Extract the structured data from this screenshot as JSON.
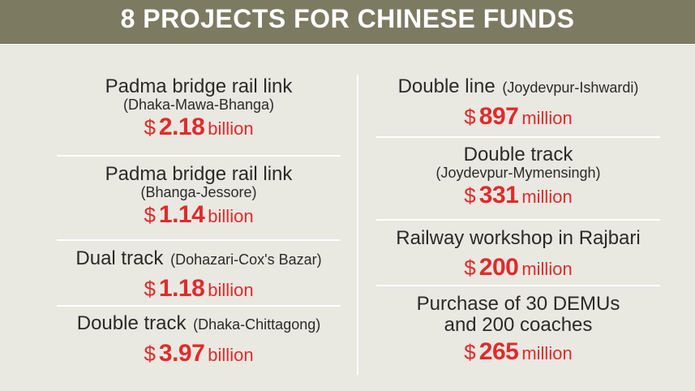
{
  "header": {
    "title": "8 PROJECTS FOR CHINESE FUNDS"
  },
  "projects_left": [
    {
      "title": "Padma bridge rail link",
      "subtitle": "(Dhaka-Mawa-Bhanga)",
      "amount": {
        "symbol": "$",
        "value": "2.18",
        "unit": "billion"
      }
    },
    {
      "title": "Padma bridge rail link",
      "subtitle": "(Bhanga-Jessore)",
      "amount": {
        "symbol": "$",
        "value": "1.14",
        "unit": "billion"
      }
    },
    {
      "title": "Dual track",
      "title_note": "(Dohazari-Cox's Bazar)",
      "amount": {
        "symbol": "$",
        "value": "1.18",
        "unit": "billion"
      }
    },
    {
      "title": "Double track",
      "title_note": "(Dhaka-Chittagong)",
      "amount": {
        "symbol": "$",
        "value": "3.97",
        "unit": "billion"
      }
    }
  ],
  "projects_right": [
    {
      "title": "Double line",
      "title_note": "(Joydevpur-Ishwardi)",
      "amount": {
        "symbol": "$",
        "value": "897",
        "unit": "million"
      }
    },
    {
      "title": "Double track",
      "subtitle": "(Joydevpur-Mymensingh)",
      "amount": {
        "symbol": "$",
        "value": "331",
        "unit": "million"
      }
    },
    {
      "title": "Railway workshop in Rajbari",
      "amount": {
        "symbol": "$",
        "value": "200",
        "unit": "million"
      }
    },
    {
      "title": "Purchase of 30 DEMUs",
      "subtitle": "and 200 coaches",
      "amount": {
        "symbol": "$",
        "value": "265",
        "unit": "million"
      }
    }
  ]
}
